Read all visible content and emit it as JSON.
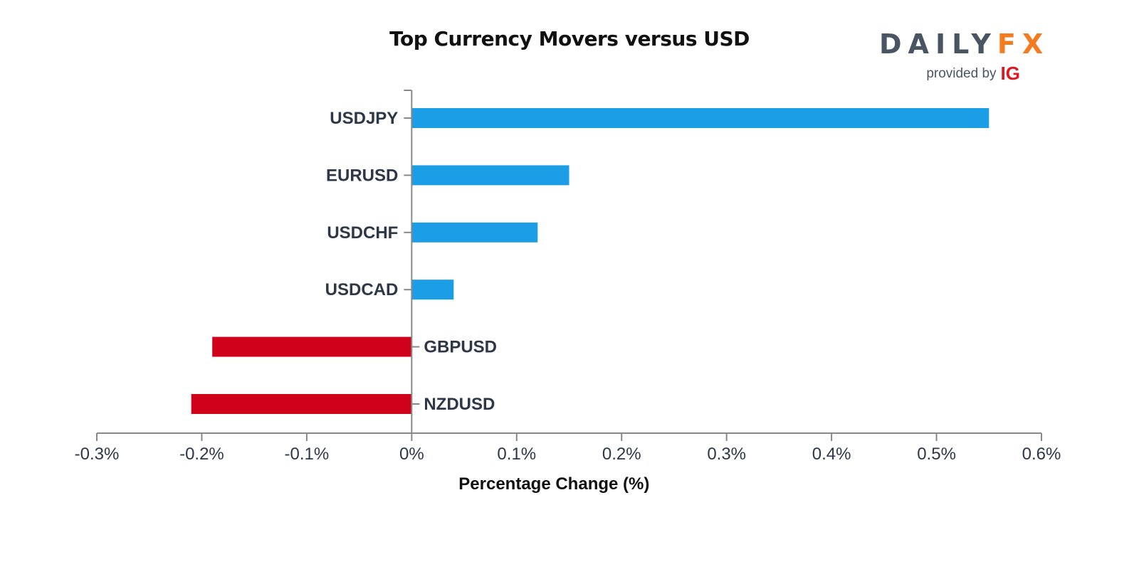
{
  "chart_data": {
    "type": "bar",
    "orientation": "horizontal",
    "title": "Top Currency Movers versus USD",
    "xlabel": "Percentage Change (%)",
    "ylabel": "",
    "categories": [
      "USDJPY",
      "EURUSD",
      "USDCHF",
      "USDCAD",
      "GBPUSD",
      "NZDUSD"
    ],
    "values": [
      0.55,
      0.15,
      0.12,
      0.04,
      -0.19,
      -0.21
    ],
    "xlim": [
      -0.3,
      0.6
    ],
    "xticks": [
      -0.3,
      -0.2,
      -0.1,
      0,
      0.1,
      0.2,
      0.3,
      0.4,
      0.5,
      0.6
    ],
    "xtick_labels": [
      "-0.3%",
      "-0.2%",
      "-0.1%",
      "0%",
      "0.1%",
      "0.2%",
      "0.3%",
      "0.4%",
      "0.5%",
      "0.6%"
    ],
    "grid": false,
    "colors": {
      "positive": "#1c9ee6",
      "negative": "#d0021b"
    }
  },
  "logo": {
    "brand_part1": "DAILY",
    "brand_part2": "FX",
    "provided_by": "provided by",
    "provider": "IG"
  }
}
